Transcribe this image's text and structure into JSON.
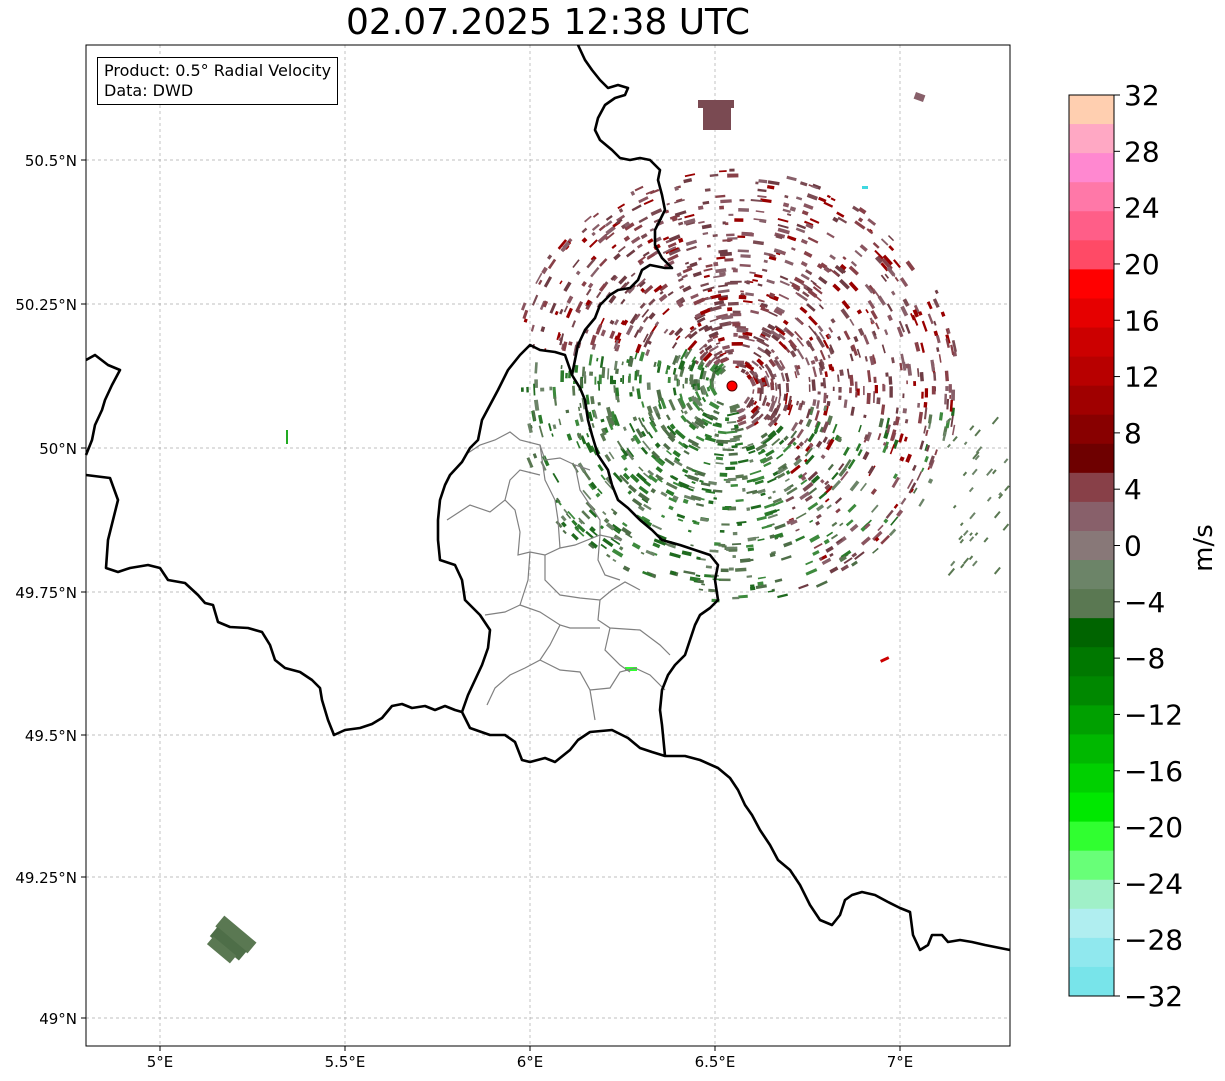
{
  "title": "02.07.2025 12:38 UTC",
  "legend": {
    "product": "Product: 0.5° Radial Velocity",
    "source": "Data: DWD"
  },
  "axes": {
    "lon_ticks": [
      "5°E",
      "5.5°E",
      "6°E",
      "6.5°E",
      "7°E"
    ],
    "lat_ticks": [
      "50.5°N",
      "50.25°N",
      "50°N",
      "49.75°N",
      "49.5°N",
      "49.25°N",
      "49°N"
    ]
  },
  "colorbar": {
    "label": "m/s",
    "ticks": [
      "32",
      "28",
      "24",
      "20",
      "16",
      "12",
      "8",
      "4",
      "0",
      "−4",
      "−8",
      "−12",
      "−16",
      "−20",
      "−24",
      "−28",
      "−32"
    ],
    "range": [
      -32,
      32
    ],
    "colors_top_to_bottom": [
      "#ffcfb0",
      "#ffa8c4",
      "#ff88d0",
      "#ff78a8",
      "#ff5e88",
      "#ff4a66",
      "#ff0000",
      "#e60000",
      "#cc0000",
      "#b80000",
      "#a00000",
      "#880000",
      "#6e0000",
      "#884048",
      "#88606a",
      "#887878",
      "#6c8468",
      "#5a7852",
      "#006400",
      "#007800",
      "#008800",
      "#00a000",
      "#00b800",
      "#00d000",
      "#00e800",
      "#30ff30",
      "#68ff78",
      "#a0f0c8",
      "#b0eef0",
      "#90e8ee",
      "#78e4ea"
    ]
  },
  "radar_site": {
    "color": "#ff0000"
  }
}
